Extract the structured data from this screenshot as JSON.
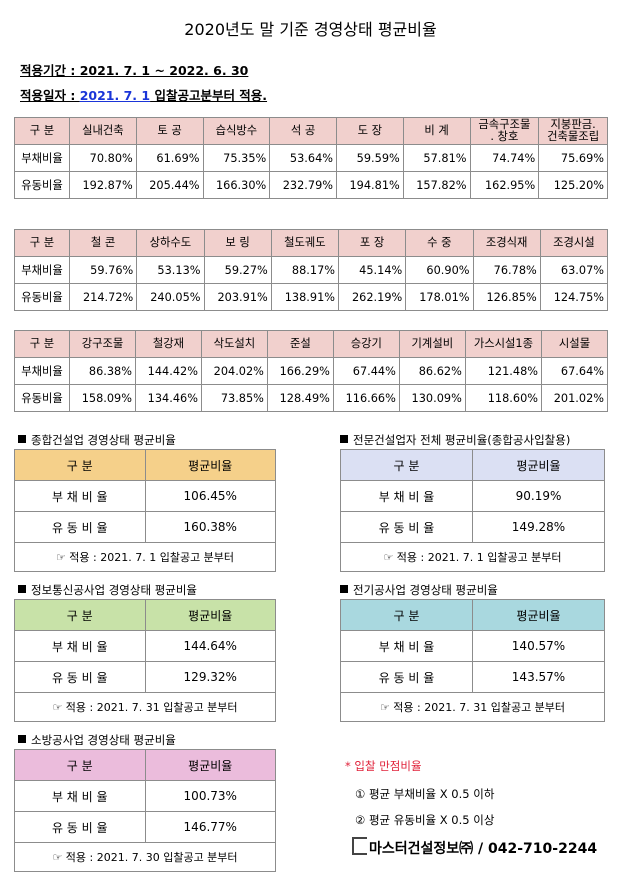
{
  "title": "2020년도 말 기준 경영상태 평균비율",
  "period_label": "적용기간 : 2021. 7. 1 ~ 2022. 6. 30",
  "apply_prefix": "적용일자 : ",
  "apply_link": "2021. 7. 1",
  "apply_suffix": " 입찰공고분부터 적용.",
  "row_labels": {
    "header": "구 분",
    "debt": "부채비율",
    "liquidity": "유동비율"
  },
  "table1": {
    "headers": [
      "실내건축",
      "토 공",
      "습식방수",
      "석 공",
      "도 장",
      "비 계",
      "금속구조물\n. 창호",
      "지붕판금.\n건축물조립"
    ],
    "debt": [
      "70.80%",
      "61.69%",
      "75.35%",
      "53.64%",
      "59.59%",
      "57.81%",
      "74.74%",
      "75.69%"
    ],
    "liquidity": [
      "192.87%",
      "205.44%",
      "166.30%",
      "232.79%",
      "194.81%",
      "157.82%",
      "162.95%",
      "125.20%"
    ]
  },
  "table2": {
    "headers": [
      "철 콘",
      "상하수도",
      "보 링",
      "철도궤도",
      "포 장",
      "수 중",
      "조경식재",
      "조경시설"
    ],
    "debt": [
      "59.76%",
      "53.13%",
      "59.27%",
      "88.17%",
      "45.14%",
      "60.90%",
      "76.78%",
      "63.07%"
    ],
    "liquidity": [
      "214.72%",
      "240.05%",
      "203.91%",
      "138.91%",
      "262.19%",
      "178.01%",
      "126.85%",
      "124.75%"
    ]
  },
  "table3": {
    "headers": [
      "강구조물",
      "철강재",
      "삭도설치",
      "준설",
      "승강기",
      "기계설비",
      "가스시설1종",
      "시설물"
    ],
    "debt": [
      "86.38%",
      "144.42%",
      "204.02%",
      "166.29%",
      "67.44%",
      "86.62%",
      "121.48%",
      "67.64%"
    ],
    "liquidity": [
      "158.09%",
      "134.46%",
      "73.85%",
      "128.49%",
      "116.66%",
      "130.09%",
      "118.60%",
      "201.02%"
    ]
  },
  "small_labels": {
    "header_left": "구 분",
    "header_right": "평균비율",
    "debt": "부 채 비 율",
    "liquidity": "유 동 비 율"
  },
  "boxes": {
    "general": {
      "title": "종합건설업 경영상태 평균비율",
      "debt": "106.45%",
      "liquidity": "160.38%",
      "note": "☞ 적용 : 2021. 7. 1 입찰공고 분부터",
      "color": "#f5d08a"
    },
    "specialty": {
      "title": "전문건설업자 전체 평균비율(종합공사입찰용)",
      "debt": "90.19%",
      "liquidity": "149.28%",
      "note": "☞ 적용 : 2021. 7. 1 입찰공고 분부터",
      "color": "#dbe0f3"
    },
    "ict": {
      "title": "정보통신공사업 경영상태 평균비율",
      "debt": "144.64%",
      "liquidity": "129.32%",
      "note": "☞ 적용 : 2021. 7. 31 입찰공고 분부터",
      "color": "#c8e2a8"
    },
    "electric": {
      "title": "전기공사업 경영상태 평균비율",
      "debt": "140.57%",
      "liquidity": "143.57%",
      "note": "☞ 적용 : 2021. 7. 31 입찰공고 분부터",
      "color": "#a9d8df"
    },
    "fire": {
      "title": "소방공사업 경영상태 평균비율",
      "debt": "100.73%",
      "liquidity": "146.77%",
      "note": "☞ 적용 : 2021. 7. 30 입찰공고 분부터",
      "color": "#ebbcdc"
    }
  },
  "bid_rules": {
    "title": "* 입찰 만점비율",
    "rule1": "① 평균 부채비율 X 0.5 이하",
    "rule2": "② 평균 유동비율 X 0.5 이상"
  },
  "brand": "마스터건설정보㈜ / 042-710-2244",
  "colors": {
    "header_bg": "#f1d0cd",
    "marker_red": "#e0223a",
    "link_blue": "#1a35d8"
  }
}
